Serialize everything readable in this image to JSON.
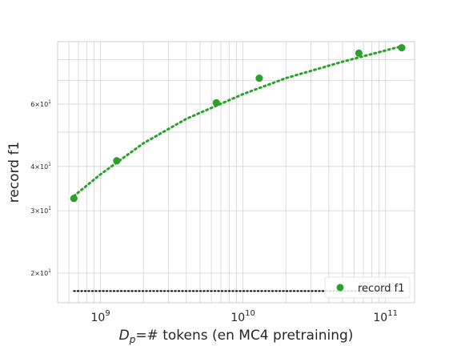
{
  "chart_data": {
    "type": "scatter",
    "xscale": "log",
    "yscale": "log",
    "xlim": [
      500000000.0,
      160000000000.0
    ],
    "ylim": [
      16.5,
      90
    ],
    "xlabel_main": "D",
    "xlabel_sub": "p",
    "xlabel_rest": "=# tokens (en MC4 pretraining)",
    "ylabel": "record f1",
    "x_major_ticks": [
      {
        "value": 1000000000.0,
        "base": "10",
        "exp": "9"
      },
      {
        "value": 10000000000.0,
        "base": "10",
        "exp": "10"
      },
      {
        "value": 100000000000.0,
        "base": "10",
        "exp": "11"
      }
    ],
    "y_labeled_ticks": [
      {
        "value": 20,
        "coef": "2",
        "base": "10",
        "exp": "1"
      },
      {
        "value": 30,
        "coef": "3",
        "base": "10",
        "exp": "1"
      },
      {
        "value": 40,
        "coef": "4",
        "base": "10",
        "exp": "1"
      },
      {
        "value": 60,
        "coef": "6",
        "base": "10",
        "exp": "1"
      }
    ],
    "grid": true,
    "legend_position": "lower-right",
    "series": [
      {
        "name": "record f1",
        "color": "#2ca02c",
        "marker": "circle",
        "x": [
          650000000.0,
          1300000000.0,
          6500000000.0,
          13000000000.0,
          65000000000.0,
          130000000000.0
        ],
        "y": [
          32.5,
          41.5,
          60.5,
          71,
          83.5,
          86.5
        ]
      }
    ],
    "fit_line": {
      "color": "#2ca02c",
      "style": "dotted",
      "x": [
        650000000.0,
        1000000000.0,
        2000000000.0,
        4000000000.0,
        10000000000.0,
        20000000000.0,
        50000000000.0,
        125000000000.0
      ],
      "y": [
        33,
        38,
        46.5,
        54.5,
        64,
        71,
        79,
        87
      ]
    },
    "baseline": {
      "color": "#000000",
      "style": "dotted",
      "x": [
        650000000.0,
        130000000000.0
      ],
      "y": [
        17.8,
        17.8
      ]
    }
  }
}
